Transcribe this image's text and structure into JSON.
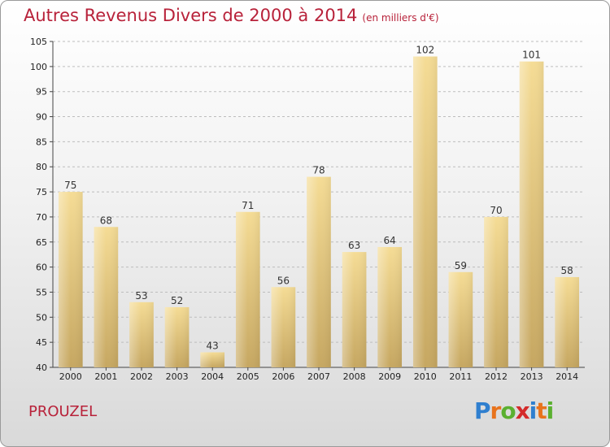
{
  "title": "Autres Revenus Divers de 2000 à 2014",
  "unit_note": "(en milliers d'€)",
  "commune": "PROUZEL",
  "logo": {
    "text": "Proxiti",
    "letters": [
      {
        "ch": "P",
        "color": "#2f7fcf"
      },
      {
        "ch": "r",
        "color": "#e8731c"
      },
      {
        "ch": "o",
        "color": "#5bb030"
      },
      {
        "ch": "x",
        "color": "#d42b2b"
      },
      {
        "ch": "i",
        "color": "#2f7fcf"
      },
      {
        "ch": "t",
        "color": "#e8731c"
      },
      {
        "ch": "i",
        "color": "#5bb030"
      }
    ]
  },
  "colors": {
    "bar_light": "#f5dc95",
    "bar_dark": "#c6a761",
    "title": "#b8223a"
  },
  "chart_data": {
    "type": "bar",
    "title": "Autres Revenus Divers de 2000 à 2014",
    "categories": [
      "2000",
      "2001",
      "2002",
      "2003",
      "2004",
      "2005",
      "2006",
      "2007",
      "2008",
      "2009",
      "2010",
      "2011",
      "2012",
      "2013",
      "2014"
    ],
    "values": [
      75,
      68,
      53,
      52,
      43,
      71,
      56,
      78,
      63,
      64,
      102,
      59,
      70,
      101,
      58
    ],
    "ylim": [
      40,
      105
    ],
    "yticks": [
      40,
      45,
      50,
      55,
      60,
      65,
      70,
      75,
      80,
      85,
      90,
      95,
      100,
      105
    ],
    "grid": "horizontal-dashed",
    "legend": "none"
  }
}
